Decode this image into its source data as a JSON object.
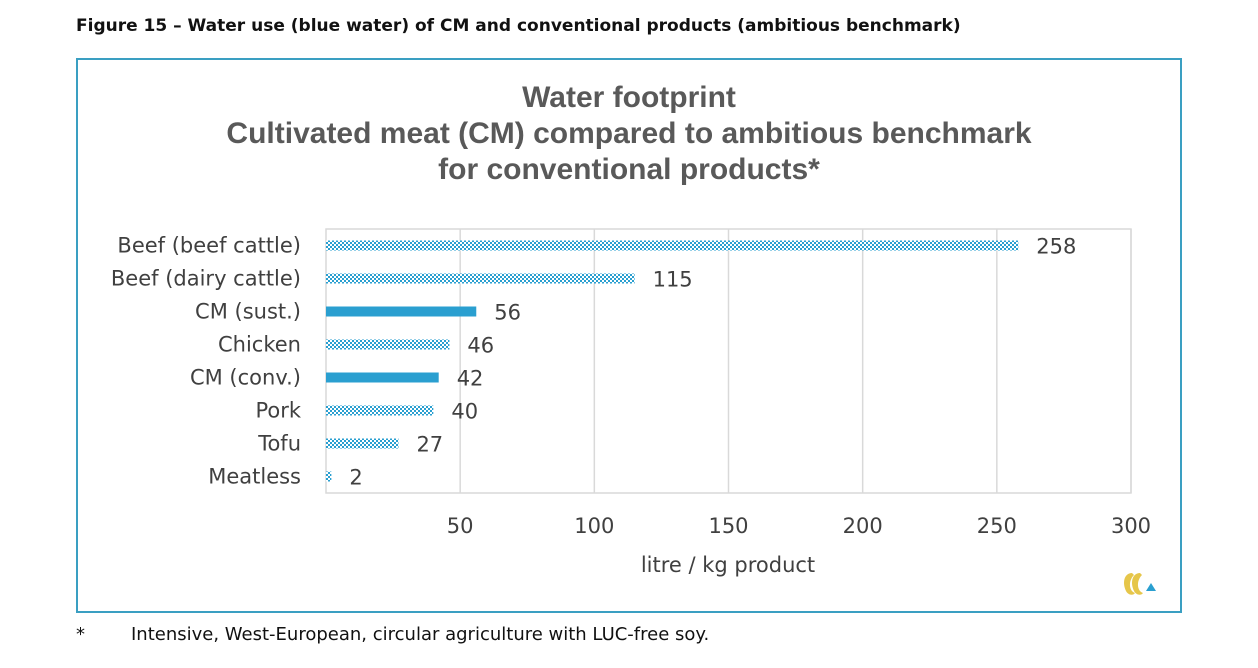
{
  "figure_caption": "Figure 15 – Water use (blue water) of CM and conventional products (ambitious benchmark)",
  "footnote": {
    "marker": "*",
    "text": "Intensive, West-European, circular agriculture with LUC-free soy."
  },
  "colors": {
    "bar": "#2a9fd0",
    "frame": "#3a9fc2",
    "grid": "#d9d9d9",
    "text": "#404040",
    "title": "#595959"
  },
  "chart_data": {
    "type": "bar",
    "orientation": "horizontal",
    "title_lines": [
      "Water footprint",
      "Cultivated meat (CM) compared to ambitious benchmark",
      "for conventional products*"
    ],
    "categories": [
      "Beef (beef cattle)",
      "Beef (dairy cattle)",
      "CM (sust.)",
      "Chicken",
      "CM (conv.)",
      "Pork",
      "Tofu",
      "Meatless"
    ],
    "values": [
      258,
      115,
      56,
      46,
      42,
      40,
      27,
      2
    ],
    "fill_styles": [
      "checker",
      "checker",
      "solid",
      "checker",
      "solid",
      "checker",
      "checker",
      "checker"
    ],
    "xlabel": "litre / kg product",
    "xlim": [
      0,
      300
    ],
    "xticks": [
      50,
      100,
      150,
      200,
      250,
      300
    ],
    "grid": true,
    "legend": "none"
  }
}
